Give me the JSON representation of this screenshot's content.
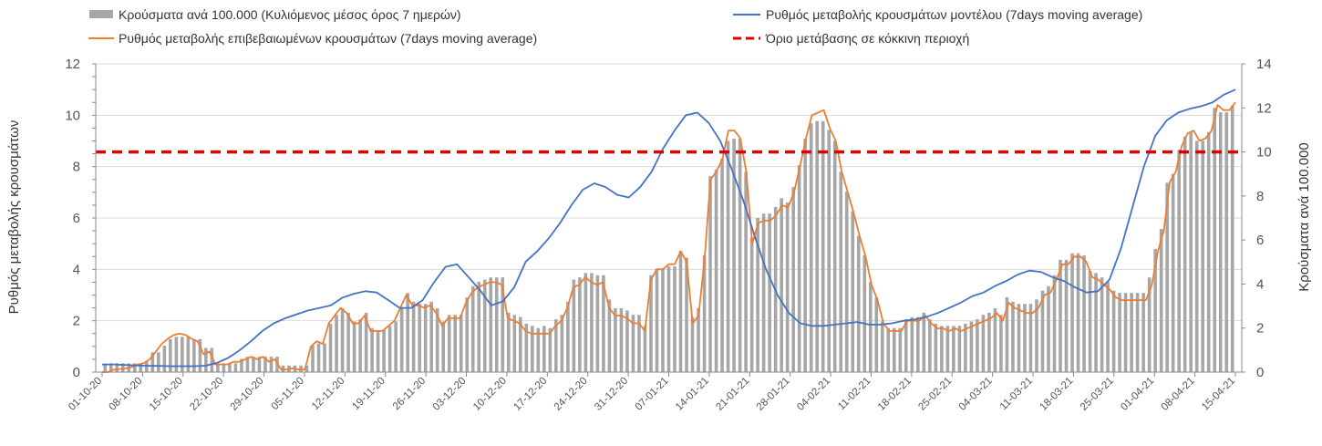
{
  "chart_data": {
    "type": "bar+line",
    "legend": {
      "bars": "Κρούσματα ανά 100.000 (Κυλιόμενος μέσος όρος 7 ημερών)",
      "model": "Ρυθμός μεταβολής κρουσμάτων μοντέλου (7days moving average)",
      "confirmed": "Ρυθμός μεταβολής επιβεβαιωμένων κρουσμάτων (7days moving average)",
      "threshold": "Όριο μετάβασης σε κόκκινη περιοχή"
    },
    "ylabel_left": "Ρυθμός μεταβολής κρουσμάτων",
    "ylabel_right": "Κρούσματα ανά 100.000",
    "ylim_left": [
      0,
      12
    ],
    "ylim_right": [
      0,
      14
    ],
    "yticks_left": [
      "0",
      "2",
      "4",
      "6",
      "8",
      "10",
      "12"
    ],
    "yticks_right": [
      "0",
      "2",
      "4",
      "6",
      "8",
      "10",
      "12",
      "14"
    ],
    "threshold_value": 10,
    "grid": "horizontal",
    "legend_position": "top",
    "colors": {
      "bars": "#a6a6a6",
      "model": "#4472c4",
      "confirmed": "#ed7d31",
      "threshold": "#e00000"
    },
    "x_ticks": [
      "01-10-20",
      "08-10-20",
      "15-10-20",
      "22-10-20",
      "29-10-20",
      "05-11-20",
      "12-11-20",
      "19-11-20",
      "26-11-20",
      "03-12-20",
      "10-12-20",
      "17-12-20",
      "24-12-20",
      "31-12-20",
      "07-01-21",
      "14-01-21",
      "21-01-21",
      "28-01-21",
      "04-02-21",
      "11-02-21",
      "18-02-21",
      "25-02-21",
      "04-03-21",
      "11-03-21",
      "18-03-21",
      "25-03-21",
      "01-04-21",
      "08-04-21",
      "15-04-21"
    ],
    "bars_per_100k": [
      0.4,
      0.4,
      0.4,
      0.4,
      0.4,
      0.4,
      0.4,
      0.5,
      0.9,
      0.9,
      1.2,
      1.5,
      1.6,
      1.6,
      1.6,
      1.5,
      1.5,
      1.1,
      1.1,
      0.4,
      0.4,
      0.4,
      0.4,
      0.6,
      0.7,
      0.7,
      0.7,
      0.7,
      0.7,
      0.7,
      0.3,
      0.3,
      0.3,
      0.3,
      0.3,
      1.2,
      1.3,
      1.3,
      2.2,
      2.6,
      2.9,
      2.7,
      2.3,
      2.4,
      2.7,
      2.0,
      1.9,
      1.9,
      2.1,
      2.3,
      2.9,
      3.6,
      3.2,
      3.1,
      3.1,
      3.2,
      2.9,
      2.3,
      2.6,
      2.6,
      2.6,
      3.4,
      3.9,
      4.1,
      4.2,
      4.3,
      4.3,
      4.3,
      2.7,
      2.6,
      2.5,
      2.2,
      2.1,
      2.0,
      2.1,
      2.0,
      2.4,
      2.6,
      3.2,
      4.2,
      4.3,
      4.5,
      4.5,
      4.4,
      4.4,
      3.3,
      2.9,
      2.9,
      2.8,
      2.6,
      2.6,
      2.1,
      4.4,
      4.7,
      4.7,
      4.8,
      4.8,
      5.5,
      5.2,
      2.5,
      2.9,
      5.3,
      8.9,
      9.2,
      9.7,
      10.5,
      10.6,
      10.6,
      9.1,
      6.1,
      7.0,
      7.2,
      7.2,
      7.5,
      7.9,
      7.7,
      8.4,
      9.4,
      10.6,
      11.3,
      11.4,
      11.4,
      11.0,
      10.5,
      9.1,
      8.2,
      7.3,
      6.2,
      5.3,
      4.1,
      3.4,
      2.3,
      2.0,
      2.0,
      2.0,
      2.4,
      2.5,
      2.5,
      2.7,
      2.4,
      2.2,
      2.1,
      2.1,
      2.1,
      2.1,
      2.2,
      2.3,
      2.4,
      2.6,
      2.7,
      2.9,
      2.6,
      3.4,
      3.2,
      3.1,
      3.1,
      3.1,
      3.3,
      3.7,
      3.9,
      4.4,
      5.1,
      5.1,
      5.4,
      5.4,
      5.3,
      4.6,
      4.5,
      4.3,
      4.1,
      3.7,
      3.6,
      3.6,
      3.6,
      3.6,
      3.6,
      4.3,
      5.6,
      6.5,
      8.6,
      9.0,
      10.1,
      10.7,
      10.9,
      10.5,
      10.5,
      10.9,
      12.0,
      11.8,
      11.8,
      12.1
    ],
    "model_rate": [
      0.3,
      0.3,
      0.28,
      0.26,
      0.25,
      0.24,
      0.23,
      0.23,
      0.23,
      0.25,
      0.35,
      0.55,
      0.85,
      1.2,
      1.6,
      1.9,
      2.1,
      2.25,
      2.4,
      2.5,
      2.6,
      2.9,
      3.05,
      3.15,
      3.1,
      2.8,
      2.5,
      2.5,
      2.8,
      3.5,
      4.1,
      4.2,
      3.7,
      3.2,
      2.6,
      2.75,
      3.3,
      4.3,
      4.7,
      5.2,
      5.8,
      6.5,
      7.1,
      7.35,
      7.2,
      6.9,
      6.8,
      7.2,
      7.8,
      8.7,
      9.4,
      10.0,
      10.1,
      9.7,
      9.0,
      7.9,
      6.7,
      5.3,
      4.0,
      3.0,
      2.3,
      1.9,
      1.8,
      1.8,
      1.85,
      1.9,
      1.95,
      1.85,
      1.85,
      1.9,
      2.0,
      2.05,
      2.15,
      2.3,
      2.5,
      2.7,
      2.95,
      3.1,
      3.35,
      3.55,
      3.8,
      3.95,
      3.9,
      3.7,
      3.55,
      3.3,
      3.1,
      3.15,
      3.6,
      4.8,
      6.4,
      8.0,
      9.2,
      9.8,
      10.1,
      10.25,
      10.35,
      10.5,
      10.8,
      11.0
    ],
    "confirmed_rate": [
      0.0,
      0.0,
      0.1,
      0.12,
      0.15,
      0.2,
      0.3,
      0.35,
      0.5,
      0.8,
      1.1,
      1.3,
      1.45,
      1.5,
      1.45,
      1.3,
      1.2,
      0.7,
      0.8,
      0.3,
      0.3,
      0.3,
      0.4,
      0.4,
      0.5,
      0.6,
      0.5,
      0.6,
      0.4,
      0.5,
      0.1,
      0.1,
      0.15,
      0.1,
      0.1,
      1.0,
      1.2,
      1.1,
      1.9,
      2.2,
      2.5,
      2.3,
      1.9,
      1.9,
      2.2,
      1.6,
      1.6,
      1.6,
      1.8,
      2.0,
      2.5,
      3.0,
      2.6,
      2.6,
      2.5,
      2.6,
      2.3,
      1.8,
      2.1,
      2.1,
      2.1,
      2.7,
      3.1,
      3.3,
      3.4,
      3.5,
      3.5,
      3.4,
      2.1,
      2.0,
      1.9,
      1.6,
      1.5,
      1.5,
      1.5,
      1.5,
      1.8,
      2.0,
      2.5,
      3.3,
      3.4,
      3.7,
      3.5,
      3.4,
      3.5,
      2.5,
      2.2,
      2.2,
      2.1,
      1.9,
      1.9,
      1.6,
      3.6,
      4.0,
      4.0,
      4.2,
      4.2,
      4.7,
      4.3,
      1.9,
      2.2,
      4.4,
      7.5,
      7.8,
      8.3,
      9.4,
      9.4,
      9.1,
      7.8,
      5.0,
      5.8,
      5.9,
      5.9,
      6.1,
      6.5,
      6.4,
      7.0,
      8.0,
      9.1,
      10.0,
      10.1,
      10.2,
      9.5,
      9.0,
      7.8,
      7.0,
      6.2,
      5.3,
      4.5,
      3.4,
      2.8,
      1.9,
      1.6,
      1.6,
      1.6,
      2.0,
      2.0,
      2.0,
      2.2,
      1.9,
      1.7,
      1.7,
      1.6,
      1.7,
      1.6,
      1.7,
      1.8,
      1.9,
      2.0,
      2.1,
      2.3,
      2.0,
      2.7,
      2.5,
      2.4,
      2.3,
      2.3,
      2.5,
      3.0,
      3.1,
      3.6,
      4.2,
      4.2,
      4.5,
      4.5,
      4.3,
      3.7,
      3.6,
      3.4,
      3.2,
      2.9,
      2.8,
      2.8,
      2.8,
      2.8,
      2.8,
      3.4,
      4.7,
      5.5,
      7.4,
      7.8,
      8.8,
      9.3,
      9.4,
      9.0,
      9.1,
      9.4,
      10.4,
      10.2,
      10.2,
      10.5
    ]
  }
}
